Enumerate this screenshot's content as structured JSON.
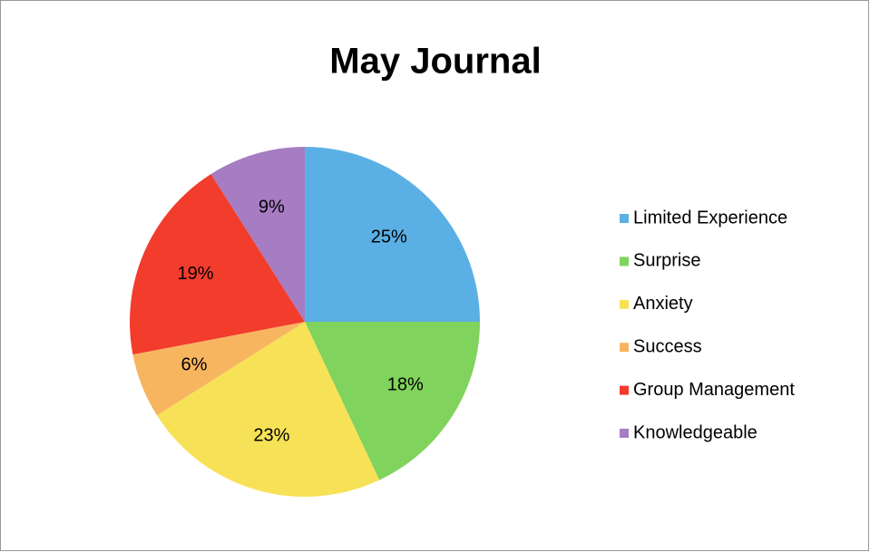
{
  "chart_data": {
    "type": "pie",
    "title": "May Journal",
    "categories": [
      "Limited Experience",
      "Surprise",
      "Anxiety",
      "Success",
      "Group Management",
      "Knowledgeable"
    ],
    "values": [
      25,
      18,
      23,
      6,
      19,
      9
    ],
    "value_labels": [
      "25%",
      "18%",
      "23%",
      "6%",
      "19%",
      "9%"
    ],
    "colors": [
      "#5ab0e4",
      "#80d35c",
      "#f7e257",
      "#f8b560",
      "#f23c2c",
      "#a67cc2"
    ],
    "legend": "right"
  }
}
